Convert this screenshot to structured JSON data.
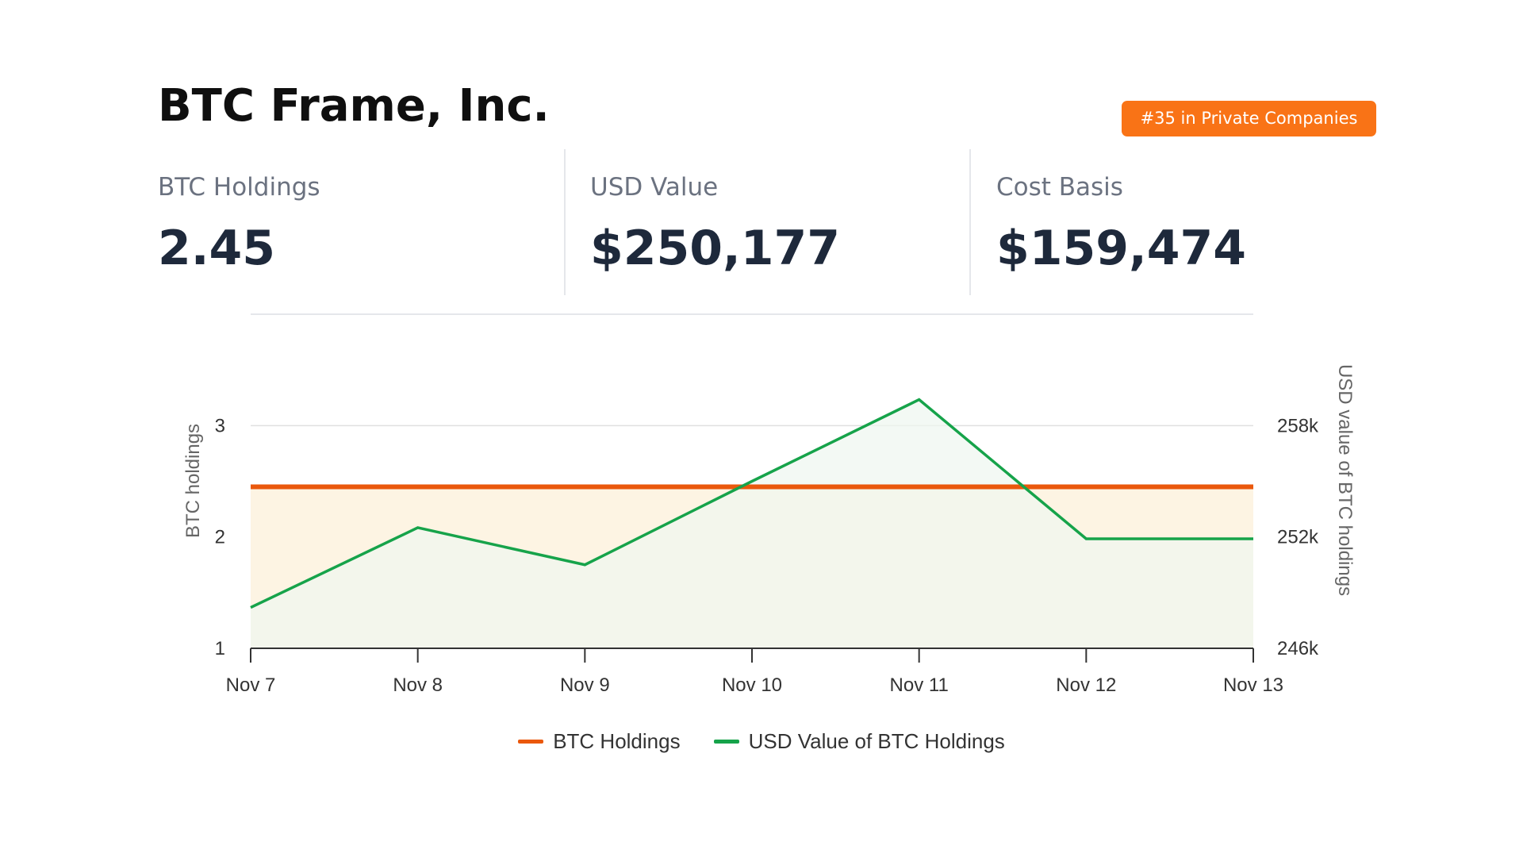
{
  "header": {
    "title": "BTC Frame, Inc.",
    "rank_badge": "#35 in Private Companies"
  },
  "stats": [
    {
      "label": "BTC Holdings",
      "value": "2.45"
    },
    {
      "label": "USD Value",
      "value": "$250,177"
    },
    {
      "label": "Cost Basis",
      "value": "$159,474"
    }
  ],
  "colors": {
    "badge": "#f97316",
    "btc_holdings": "#ea580c",
    "usd_value": "#16a34a",
    "btc_fill": "#fdf4e3",
    "usd_fill": "#eef7f0"
  },
  "chart_data": {
    "type": "line",
    "x": [
      "Nov 7",
      "Nov 8",
      "Nov 9",
      "Nov 10",
      "Nov 11",
      "Nov 12",
      "Nov 13"
    ],
    "series": [
      {
        "name": "BTC Holdings",
        "axis": "left",
        "values": [
          2.45,
          2.45,
          2.45,
          2.45,
          2.45,
          2.45,
          2.45
        ],
        "color": "#ea580c",
        "fill": true
      },
      {
        "name": "USD Value of BTC Holdings",
        "axis": "right",
        "values": [
          248200,
          252500,
          250500,
          255000,
          259400,
          251900,
          251900
        ],
        "color": "#16a34a",
        "fill": true
      }
    ],
    "y_left": {
      "label": "BTC holdings",
      "ticks": [
        {
          "value": 1,
          "label": "1"
        },
        {
          "value": 2,
          "label": "2"
        },
        {
          "value": 3,
          "label": "3"
        }
      ],
      "range": [
        1,
        4
      ]
    },
    "y_right": {
      "label": "USD value of BTC holdings",
      "ticks": [
        {
          "value": 246000,
          "label": "246k"
        },
        {
          "value": 252000,
          "label": "252k"
        },
        {
          "value": 258000,
          "label": "258k"
        }
      ],
      "range": [
        246000,
        264000
      ]
    },
    "grid": true,
    "legend_position": "bottom"
  }
}
